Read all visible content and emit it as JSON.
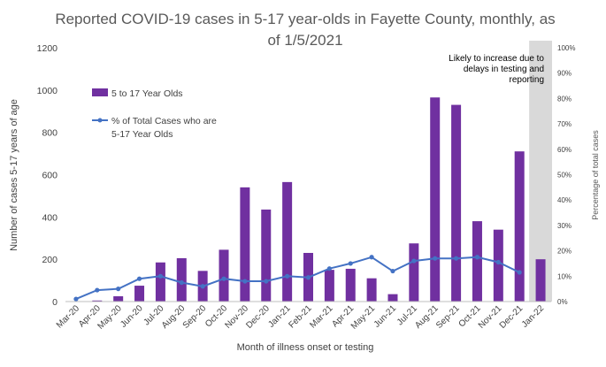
{
  "chart_data": {
    "type": "bar",
    "title_line1": "Reported COVID-19 cases in 5-17 year-olds in Fayette County, monthly, as",
    "title_line2": "of 1/5/2021",
    "xlabel": "Month of illness onset or testing",
    "ylabel": "Number of cases 5-17 years of age",
    "y2label": "Percentage of total cases",
    "ylim": [
      0,
      1200
    ],
    "y_ticks": [
      "0",
      "200",
      "400",
      "600",
      "800",
      "1000",
      "1200"
    ],
    "y2lim": [
      0,
      100
    ],
    "y2_ticks": [
      "0%",
      "10%",
      "20%",
      "30%",
      "40%",
      "50%",
      "60%",
      "70%",
      "80%",
      "90%",
      "100%"
    ],
    "categories": [
      "Mar-20",
      "Apr-20",
      "May-20",
      "Jun-20",
      "Jul-20",
      "Aug-20",
      "Sep-20",
      "Oct-20",
      "Nov-20",
      "Dec-20",
      "Jan-21",
      "Feb-21",
      "Mar-21",
      "Apr-21",
      "May-21",
      "Jun-21",
      "Jul-21",
      "Aug-21",
      "Sep-21",
      "Oct-21",
      "Nov-21",
      "Dec-21",
      "Jan-22"
    ],
    "series": [
      {
        "name": "5 to 17 Year Olds",
        "type": "bar",
        "color": "#7030A0",
        "values": [
          2,
          5,
          25,
          75,
          185,
          205,
          145,
          245,
          540,
          435,
          565,
          230,
          150,
          155,
          110,
          35,
          275,
          965,
          930,
          380,
          340,
          710,
          200
        ]
      },
      {
        "name_line1": "% of Total Cases who are",
        "name_line2": "5-17 Year Olds",
        "type": "line",
        "axis": "secondary",
        "color": "#4472C4",
        "values": [
          1,
          4.5,
          5,
          9,
          10,
          7.5,
          6,
          9,
          8,
          8,
          10,
          9.5,
          13,
          15,
          17.5,
          12,
          16,
          17,
          17,
          17.5,
          15.5,
          11.5,
          null
        ]
      }
    ],
    "annotation": {
      "lines": [
        "Likely to increase due to",
        "delays in testing and",
        "reporting"
      ],
      "shaded_category": "Jan-22",
      "shade_color": "#D9D9D9"
    },
    "grid": false,
    "legend_position": "upper-left"
  }
}
